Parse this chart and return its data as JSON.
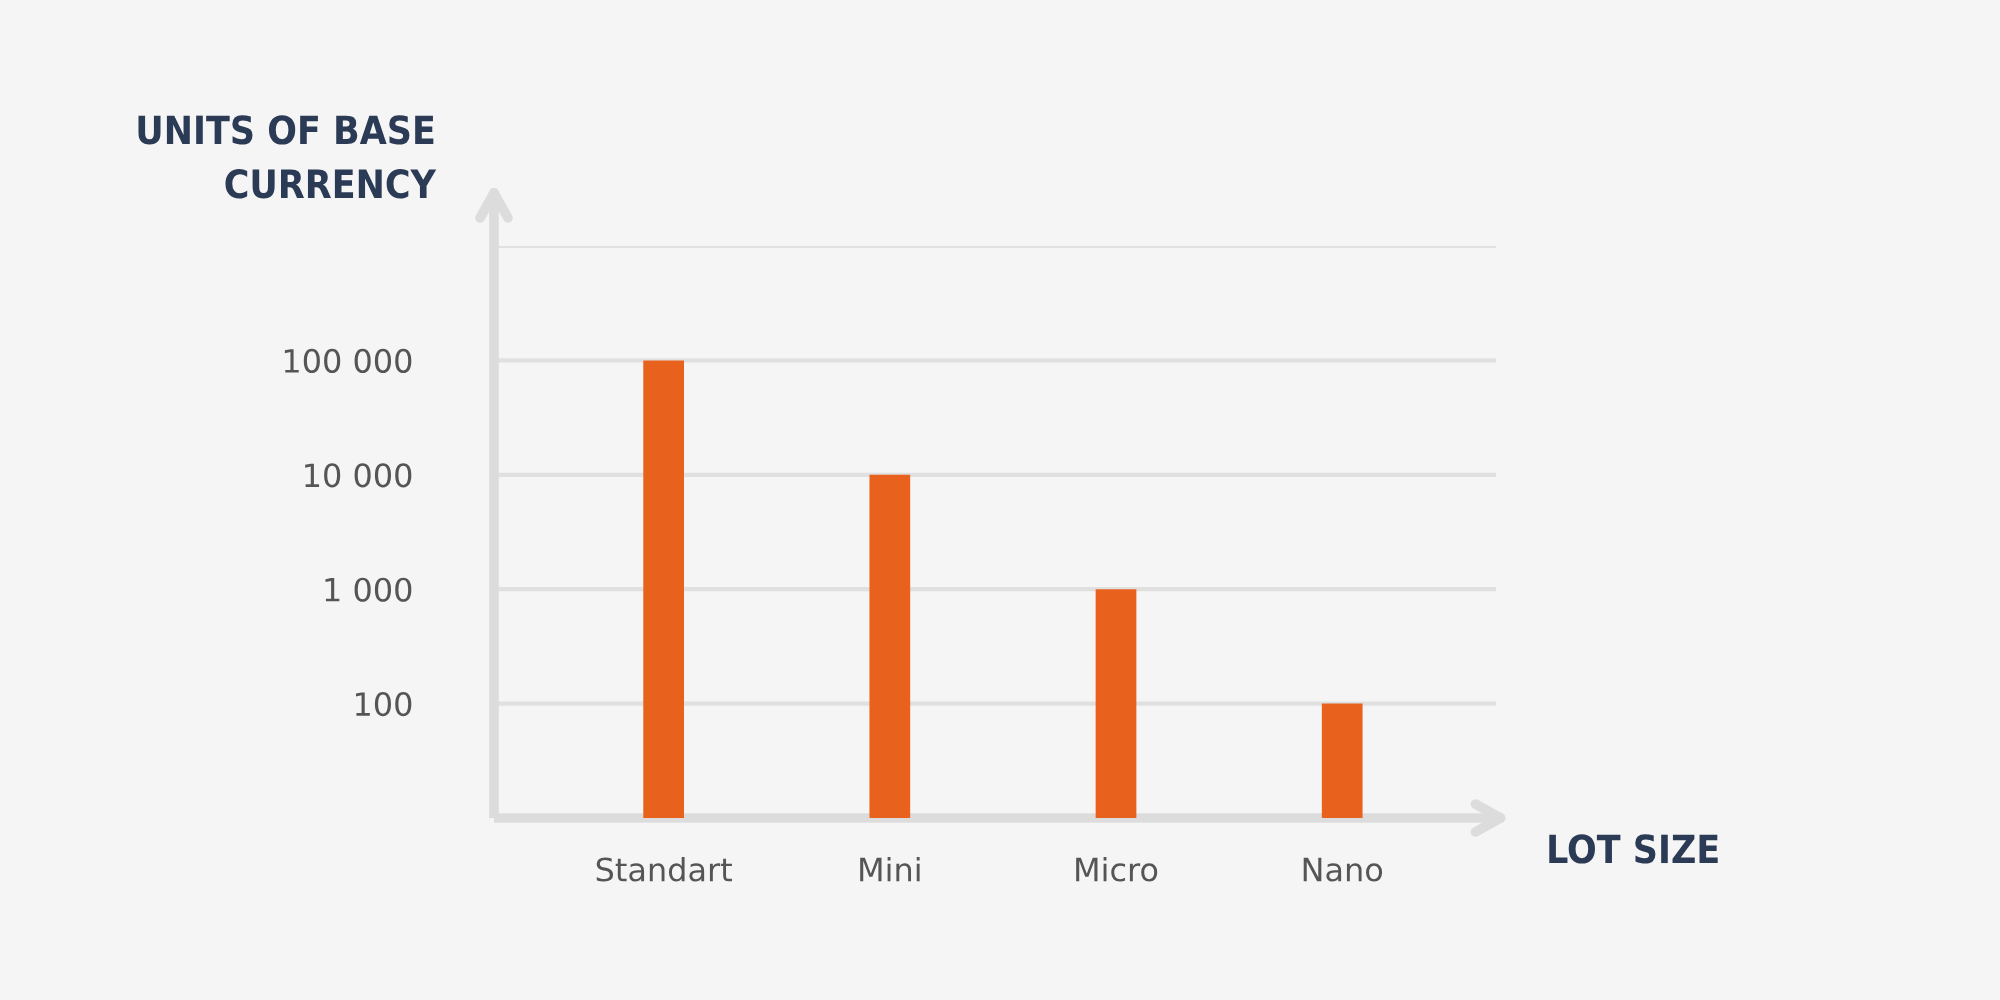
{
  "chart_data": {
    "type": "bar",
    "ylabel": "UNITS OF BASE\nCURRENCY",
    "xlabel": "LOT SIZE",
    "categories": [
      "Standart",
      "Mini",
      "Micro",
      "Nano"
    ],
    "values": [
      100000,
      10000,
      1000,
      100
    ],
    "color": "#e8621e",
    "log": "y",
    "ylim": [
      10,
      1000000
    ],
    "yticks": [
      {
        "value": 100,
        "label": "100"
      },
      {
        "value": 1000,
        "label": "1 000"
      },
      {
        "value": 10000,
        "label": "10 000"
      },
      {
        "value": 100000,
        "label": "100 000"
      },
      {
        "value": 1000000,
        "label": null
      }
    ],
    "grid": "y"
  }
}
